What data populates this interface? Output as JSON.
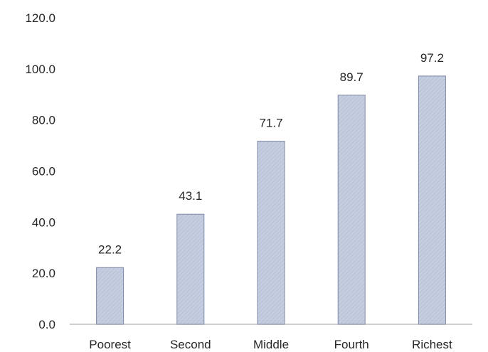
{
  "chart_data": {
    "type": "bar",
    "categories": [
      "Poorest",
      "Second",
      "Middle",
      "Fourth",
      "Richest"
    ],
    "values": [
      22.2,
      43.1,
      71.7,
      89.7,
      97.2
    ],
    "data_labels": [
      "22.2",
      "43.1",
      "71.7",
      "89.7",
      "97.2"
    ],
    "title": "",
    "xlabel": "",
    "ylabel": "",
    "ylim": [
      0,
      120
    ],
    "yticks": [
      0,
      20,
      40,
      60,
      80,
      100,
      120
    ],
    "ytick_labels": [
      "0.0",
      "20.0",
      "40.0",
      "60.0",
      "80.0",
      "100.0",
      "120.0"
    ],
    "grid": false,
    "legend": "none",
    "bar_fill": "#c5cde0",
    "bar_stroke": "#7f8aa6",
    "axis_color": "#bfbfbf"
  }
}
